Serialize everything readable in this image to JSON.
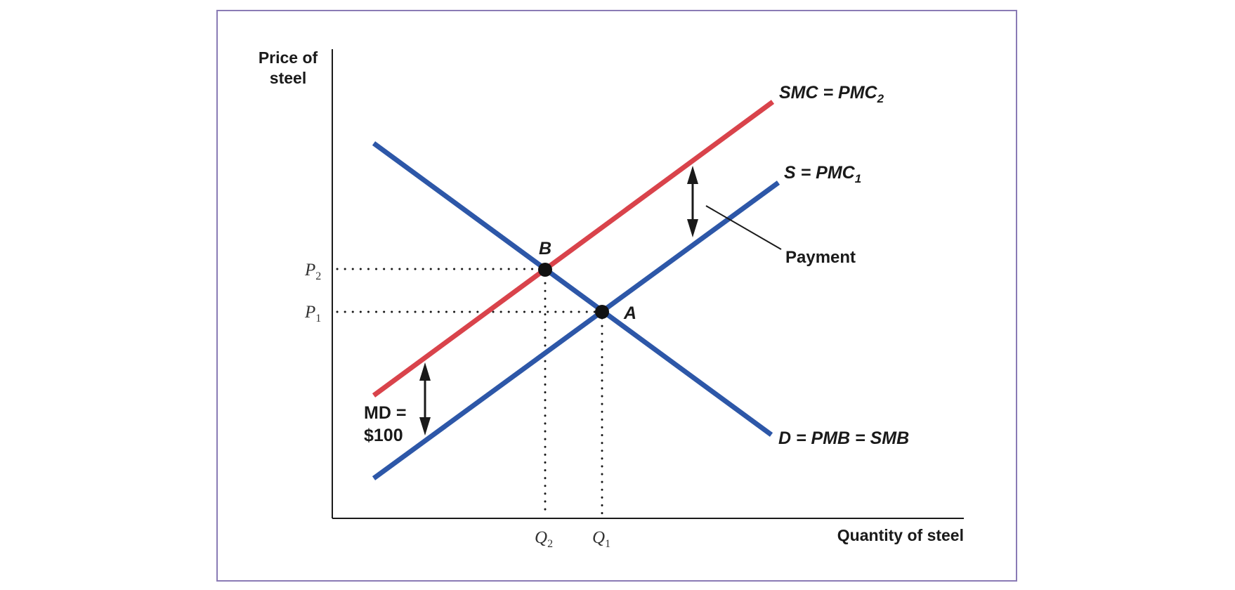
{
  "figure": {
    "y_axis_label_line1": "Price of",
    "y_axis_label_line2": "steel",
    "x_axis_label": "Quantity of steel",
    "curves": {
      "smc": {
        "label_main": "SMC = PMC",
        "label_sub": "2",
        "color": "#d9434b"
      },
      "supply": {
        "label_main": "S = PMC",
        "label_sub": "1",
        "color": "#2d57a8"
      },
      "demand": {
        "label": "D = PMB = SMB",
        "color": "#2d57a8"
      }
    },
    "points": {
      "a": {
        "label": "A"
      },
      "b": {
        "label": "B"
      }
    },
    "price_ticks": [
      {
        "main": "P",
        "sub": "2"
      },
      {
        "main": "P",
        "sub": "1"
      }
    ],
    "quantity_ticks": [
      {
        "main": "Q",
        "sub": "2"
      },
      {
        "main": "Q",
        "sub": "1"
      }
    ],
    "annotations": {
      "payment": "Payment",
      "md_line1": "MD =",
      "md_line2": "$100"
    },
    "colors": {
      "frame": "#8a7bb5",
      "axis": "#1a1a1a",
      "red_curve": "#d9434b",
      "blue_curve": "#2d57a8"
    }
  }
}
